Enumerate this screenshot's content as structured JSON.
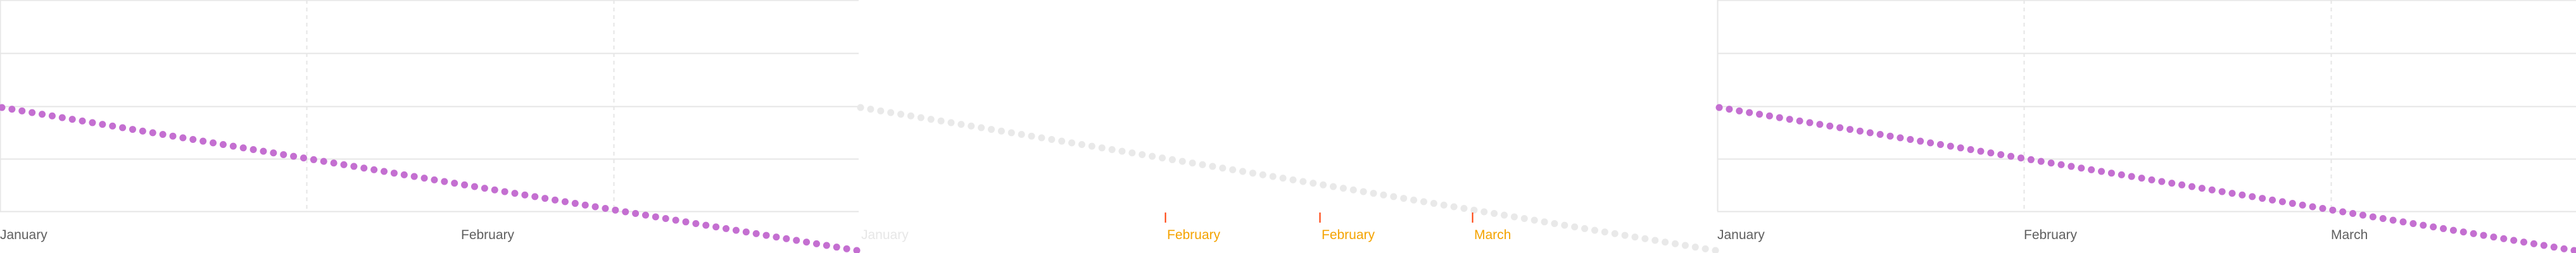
{
  "colors": {
    "point": "#c46fd1",
    "faded_point": "#e9e9e9",
    "grid": "#e6e6e6",
    "highlight_tick": "#ff3b00",
    "highlight_label": "#f4a300"
  },
  "chart_data": [
    {
      "type": "scatter",
      "grid": true,
      "x_axis_labels": [
        "January",
        "February"
      ],
      "series": [
        {
          "x": [
            0,
            1,
            2,
            3,
            4,
            5,
            6,
            7,
            8,
            9,
            10,
            11,
            12,
            13,
            14,
            15,
            16,
            17,
            18,
            19,
            20,
            21,
            22,
            23,
            24,
            25,
            26,
            27,
            28,
            29,
            30,
            31,
            32,
            33,
            34,
            35,
            36,
            37,
            38,
            39,
            40,
            41,
            42,
            43,
            44,
            45,
            46,
            47,
            48,
            49,
            50,
            51,
            52,
            53,
            54,
            55,
            56,
            57,
            58,
            59,
            60,
            61,
            62,
            63,
            64,
            65,
            66,
            67,
            68,
            69,
            70,
            71,
            72,
            73,
            74,
            75,
            76,
            77,
            78,
            79,
            80,
            81,
            82,
            83,
            84,
            85
          ],
          "y": [
            100,
            99,
            98,
            97,
            96,
            95,
            94,
            93,
            92,
            91,
            90,
            89,
            88,
            87,
            86,
            85,
            84,
            83,
            82,
            81,
            80,
            79,
            78,
            77,
            76,
            75,
            74,
            73,
            72,
            71,
            70,
            69,
            68,
            67,
            66,
            65,
            64,
            63,
            62,
            61,
            60,
            59,
            58,
            57,
            56,
            55,
            54,
            53,
            52,
            51,
            50,
            49,
            48,
            47,
            46,
            45,
            44,
            43,
            42,
            41,
            40,
            39,
            38,
            37,
            36,
            35,
            34,
            33,
            32,
            31,
            30,
            29,
            28,
            27,
            26,
            25,
            24,
            23,
            22,
            21,
            20,
            19,
            18,
            17,
            16,
            15
          ]
        }
      ]
    },
    {
      "type": "scatter",
      "grid": false,
      "x_axis_labels": [
        "January"
      ],
      "highlighted_labels": [
        "February",
        "February",
        "March"
      ],
      "series": [
        {
          "x": [
            0,
            1,
            2,
            3,
            4,
            5,
            6,
            7,
            8,
            9,
            10,
            11,
            12,
            13,
            14,
            15,
            16,
            17,
            18,
            19,
            20,
            21,
            22,
            23,
            24,
            25,
            26,
            27,
            28,
            29,
            30,
            31,
            32,
            33,
            34,
            35,
            36,
            37,
            38,
            39,
            40,
            41,
            42,
            43,
            44,
            45,
            46,
            47,
            48,
            49,
            50,
            51,
            52,
            53,
            54,
            55,
            56,
            57,
            58,
            59,
            60,
            61,
            62,
            63,
            64,
            65,
            66,
            67,
            68,
            69,
            70,
            71,
            72,
            73,
            74,
            75,
            76,
            77,
            78,
            79,
            80,
            81,
            82,
            83,
            84,
            85
          ],
          "y": [
            100,
            99,
            98,
            97,
            96,
            95,
            94,
            93,
            92,
            91,
            90,
            89,
            88,
            87,
            86,
            85,
            84,
            83,
            82,
            81,
            80,
            79,
            78,
            77,
            76,
            75,
            74,
            73,
            72,
            71,
            70,
            69,
            68,
            67,
            66,
            65,
            64,
            63,
            62,
            61,
            60,
            59,
            58,
            57,
            56,
            55,
            54,
            53,
            52,
            51,
            50,
            49,
            48,
            47,
            46,
            45,
            44,
            43,
            42,
            41,
            40,
            39,
            38,
            37,
            36,
            35,
            34,
            33,
            32,
            31,
            30,
            29,
            28,
            27,
            26,
            25,
            24,
            23,
            22,
            21,
            20,
            19,
            18,
            17,
            16,
            15
          ]
        }
      ]
    },
    {
      "type": "scatter",
      "grid": true,
      "x_axis_labels": [
        "January",
        "February",
        "March"
      ],
      "series": [
        {
          "x": [
            0,
            1,
            2,
            3,
            4,
            5,
            6,
            7,
            8,
            9,
            10,
            11,
            12,
            13,
            14,
            15,
            16,
            17,
            18,
            19,
            20,
            21,
            22,
            23,
            24,
            25,
            26,
            27,
            28,
            29,
            30,
            31,
            32,
            33,
            34,
            35,
            36,
            37,
            38,
            39,
            40,
            41,
            42,
            43,
            44,
            45,
            46,
            47,
            48,
            49,
            50,
            51,
            52,
            53,
            54,
            55,
            56,
            57,
            58,
            59,
            60,
            61,
            62,
            63,
            64,
            65,
            66,
            67,
            68,
            69,
            70,
            71,
            72,
            73,
            74,
            75,
            76,
            77,
            78,
            79,
            80,
            81,
            82,
            83,
            84,
            85
          ],
          "y": [
            100,
            99,
            98,
            97,
            96,
            95,
            94,
            93,
            92,
            91,
            90,
            89,
            88,
            87,
            86,
            85,
            84,
            83,
            82,
            81,
            80,
            79,
            78,
            77,
            76,
            75,
            74,
            73,
            72,
            71,
            70,
            69,
            68,
            67,
            66,
            65,
            64,
            63,
            62,
            61,
            60,
            59,
            58,
            57,
            56,
            55,
            54,
            53,
            52,
            51,
            50,
            49,
            48,
            47,
            46,
            45,
            44,
            43,
            42,
            41,
            40,
            39,
            38,
            37,
            36,
            35,
            34,
            33,
            32,
            31,
            30,
            29,
            28,
            27,
            26,
            25,
            24,
            23,
            22,
            21,
            20,
            19,
            18,
            17,
            16,
            15
          ]
        }
      ]
    }
  ]
}
